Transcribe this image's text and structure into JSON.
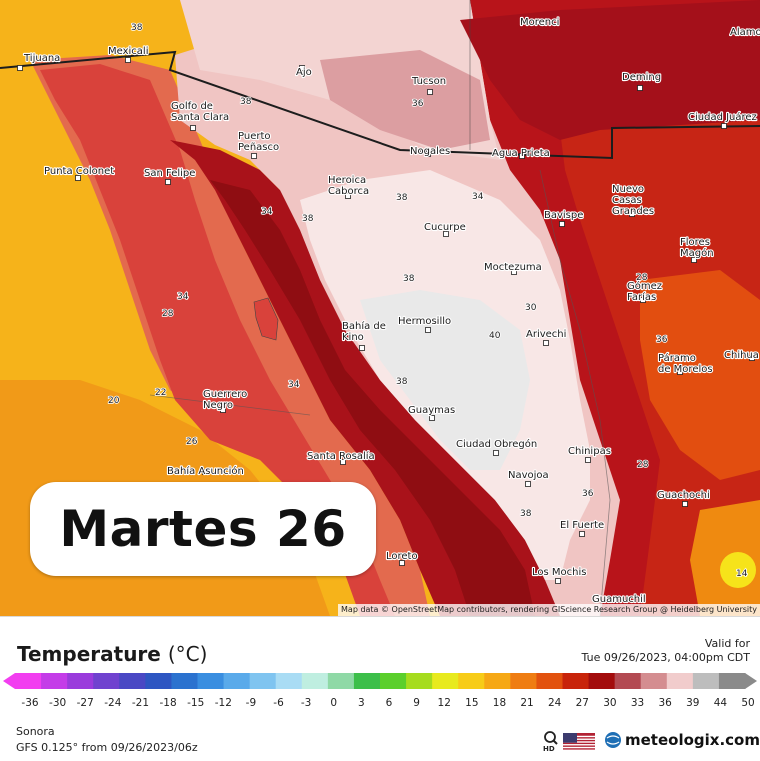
{
  "day_label": "Martes 26",
  "attribution": "Map data © OpenStreetMap contributors, rendering GIScience Research Group @ Heidelberg University",
  "legend": {
    "title": "Temperature",
    "unit": "(°C)",
    "valid_label": "Valid for",
    "valid_time": "Tue 09/26/2023, 04:00pm CDT",
    "tick_labels": [
      "-36",
      "-30",
      "-27",
      "-24",
      "-21",
      "-18",
      "-15",
      "-12",
      "-9",
      "-6",
      "-3",
      "0",
      "3",
      "6",
      "9",
      "12",
      "15",
      "18",
      "21",
      "24",
      "27",
      "30",
      "33",
      "36",
      "39",
      "44",
      "50"
    ],
    "colors": [
      "#f23ef0",
      "#c43ce8",
      "#9a3bdc",
      "#7042cf",
      "#4a48c4",
      "#2e56c2",
      "#2b72cf",
      "#3a8ee0",
      "#5aaaea",
      "#7fc4f0",
      "#a9dcf4",
      "#bfeee0",
      "#8fd9a6",
      "#3cbf4a",
      "#5bcf2c",
      "#a6dc1e",
      "#e8ea1e",
      "#f7cc18",
      "#f6a815",
      "#ef7d12",
      "#e2520e",
      "#c8240a",
      "#a30c0c",
      "#b34a52",
      "#d48d90",
      "#f1cccc",
      "#bdbdbd",
      "#8a8a8a"
    ]
  },
  "footer": {
    "region": "Sonora",
    "model_run": "GFS 0.125° from  09/26/2023/06z",
    "brand": "meteologix.com",
    "search_icon": "search-hd-icon",
    "flag_icon": "us-flag-icon"
  },
  "map": {
    "cities": [
      {
        "name": "Tijuana"
      },
      {
        "name": "Mexicali"
      },
      {
        "name": "Ajo"
      },
      {
        "name": "Tucson"
      },
      {
        "name": "Morenci"
      },
      {
        "name": "Alamo"
      },
      {
        "name": "Deming"
      },
      {
        "name": "Ciudad Juárez"
      },
      {
        "name": "Golfo de Santa Clara"
      },
      {
        "name": "Puerto Peñasco"
      },
      {
        "name": "Punta Colonet"
      },
      {
        "name": "San Felipe"
      },
      {
        "name": "Nogales"
      },
      {
        "name": "Agua Prieta"
      },
      {
        "name": "Heroica Caborca"
      },
      {
        "name": "Bavispe"
      },
      {
        "name": "Nuevo Casas Grandes"
      },
      {
        "name": "Cucurpe"
      },
      {
        "name": "Flores Magón"
      },
      {
        "name": "Moctezuma"
      },
      {
        "name": "Gómez Farías"
      },
      {
        "name": "Hermosillo"
      },
      {
        "name": "Bahía de Kino"
      },
      {
        "name": "Arivechi"
      },
      {
        "name": "Chihua"
      },
      {
        "name": "Páramo de Morelos"
      },
      {
        "name": "Guerrero Negro"
      },
      {
        "name": "Guaymas"
      },
      {
        "name": "Ciudad Obregón"
      },
      {
        "name": "Chinipas"
      },
      {
        "name": "Santa Rosalía"
      },
      {
        "name": "Bahía Asunción"
      },
      {
        "name": "Navojoa"
      },
      {
        "name": "Guachochi"
      },
      {
        "name": "El Fuerte"
      },
      {
        "name": "Loreto"
      },
      {
        "name": "Los Mochis"
      },
      {
        "name": "Guamuchil"
      }
    ],
    "contour_labels": [
      "38",
      "38",
      "36",
      "38",
      "34",
      "38",
      "38",
      "40",
      "34",
      "28",
      "22",
      "20",
      "26",
      "34",
      "38",
      "36",
      "28",
      "28",
      "30",
      "34",
      "38",
      "14",
      "36"
    ],
    "temperature_values": [
      "38",
      "38",
      "36",
      "38",
      "34",
      "38",
      "38",
      "40",
      "34",
      "28",
      "22",
      "20",
      "26",
      "34",
      "38",
      "36",
      "28",
      "28",
      "30",
      "34",
      "38",
      "14",
      "36"
    ]
  }
}
